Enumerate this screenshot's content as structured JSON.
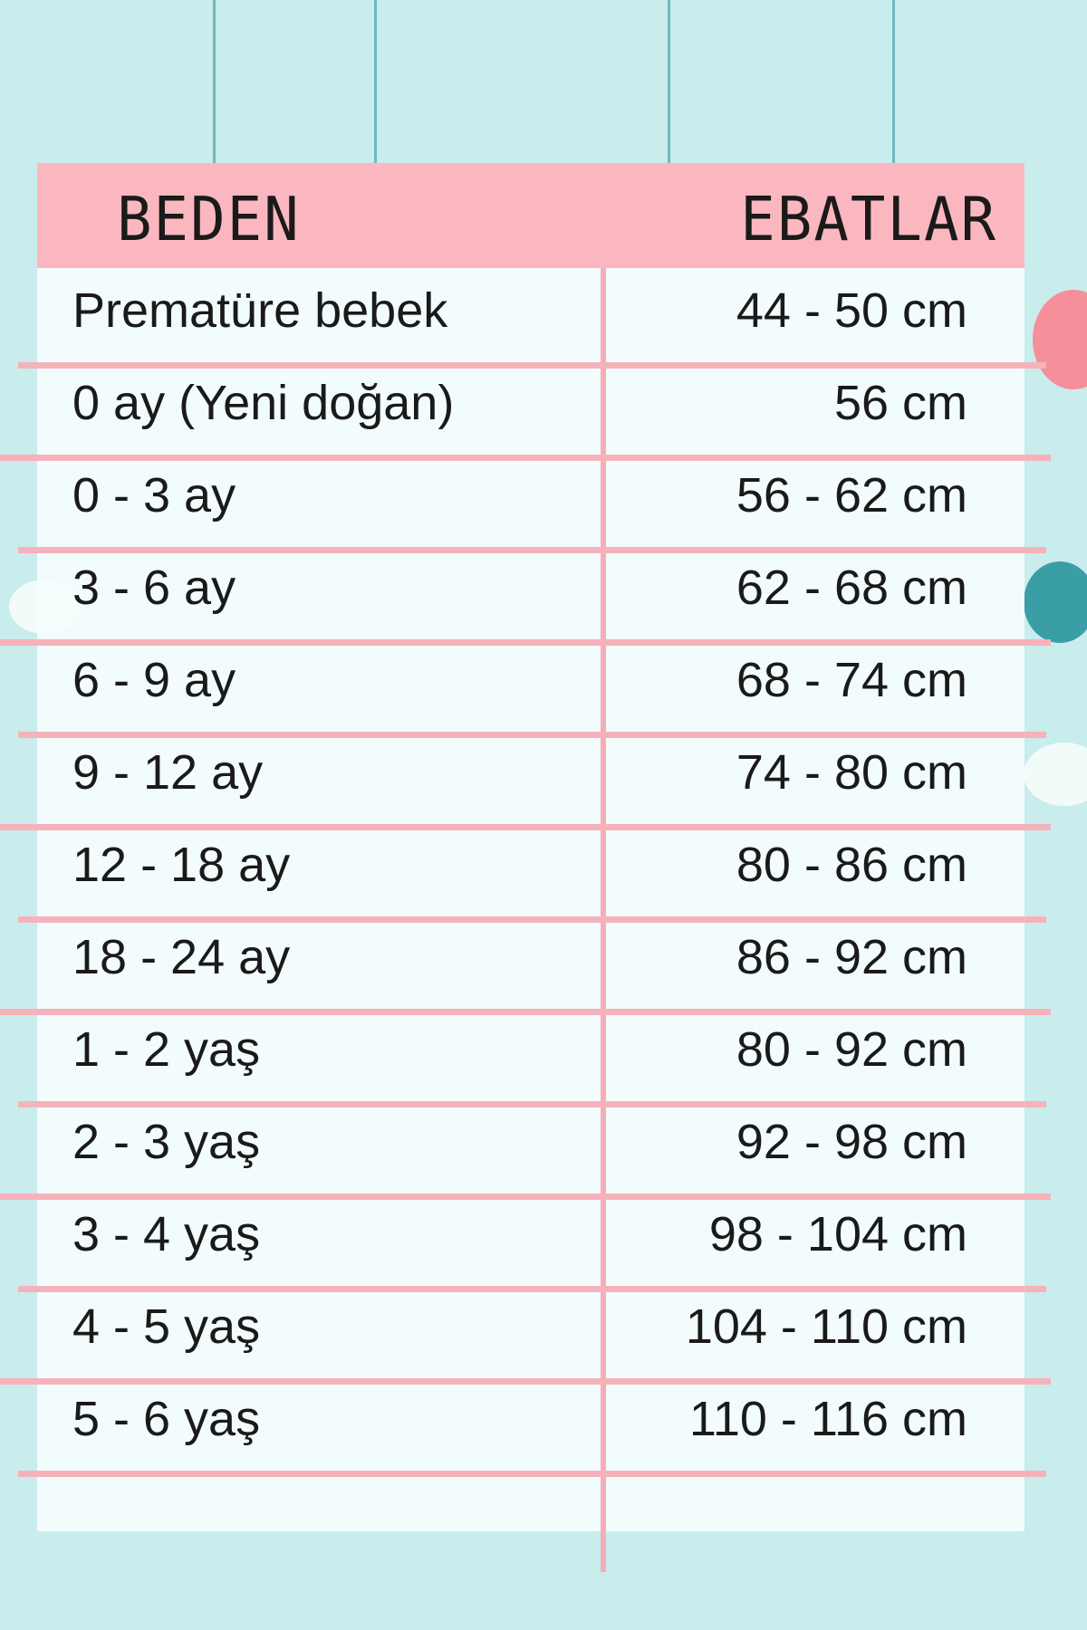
{
  "table": {
    "headers": [
      "BEDEN",
      "EBATLAR"
    ],
    "rows": [
      {
        "size": "Prematüre bebek",
        "measure": "44 - 50 cm"
      },
      {
        "size": "0 ay (Yeni doğan)",
        "measure": "56 cm"
      },
      {
        "size": "0 - 3 ay",
        "measure": "56 - 62 cm"
      },
      {
        "size": "3 - 6 ay",
        "measure": "62 - 68 cm"
      },
      {
        "size": "6 - 9 ay",
        "measure": "68 - 74 cm"
      },
      {
        "size": "9 - 12 ay",
        "measure": "74 - 80 cm"
      },
      {
        "size": "12 - 18 ay",
        "measure": "80 - 86 cm"
      },
      {
        "size": "18 - 24 ay",
        "measure": "86 - 92 cm"
      },
      {
        "size": "1 - 2 yaş",
        "measure": "80 - 92 cm"
      },
      {
        "size": "2 - 3 yaş",
        "measure": "92 - 98 cm"
      },
      {
        "size": "3 - 4 yaş",
        "measure": "98 - 104 cm"
      },
      {
        "size": "4 - 5 yaş",
        "measure": "104 - 110 cm"
      },
      {
        "size": "5 - 6 yaş",
        "measure": "110 - 116 cm"
      }
    ]
  },
  "colors": {
    "background": "#c9ecec",
    "header": "#fbb7bf",
    "lines": "#f6b2bb"
  }
}
